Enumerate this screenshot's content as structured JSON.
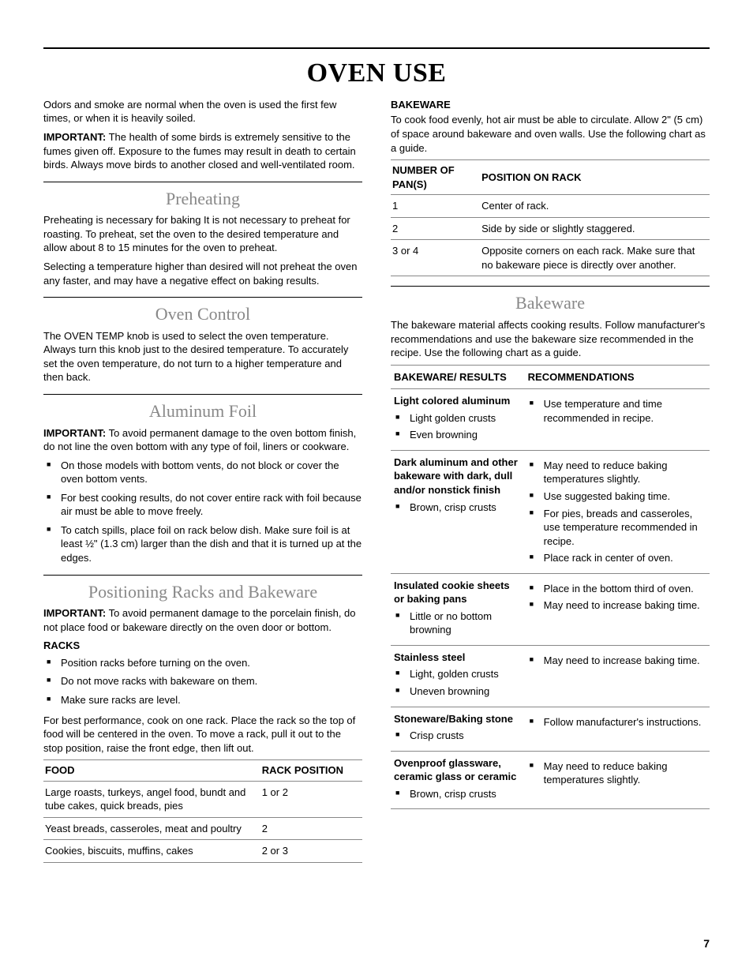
{
  "title": "OVEN USE",
  "pageNumber": "7",
  "intro": {
    "p1": "Odors and smoke are normal when the oven is used the first few times, or when it is heavily soiled.",
    "importantLabel": "IMPORTANT:",
    "importantText": " The health of some birds is extremely sensitive to the fumes given off. Exposure to the fumes may result in death to certain birds. Always move birds to another closed and well-ventilated room."
  },
  "preheating": {
    "heading": "Preheating",
    "p1": "Preheating is necessary for baking It is not necessary to preheat for roasting. To preheat, set the oven to the desired temperature and allow about 8 to 15 minutes for the oven to preheat.",
    "p2": "Selecting a temperature higher than desired will not preheat the oven any faster, and may have a negative effect on baking results."
  },
  "ovenControl": {
    "heading": "Oven Control",
    "p1": "The OVEN TEMP knob is used to select the oven temperature. Always turn this knob just to the desired temperature. To accurately set the oven temperature, do not turn to a higher temperature and then back."
  },
  "aluminumFoil": {
    "heading": "Aluminum Foil",
    "importantLabel": "IMPORTANT:",
    "importantText": " To avoid permanent damage to the oven bottom finish, do not line the oven bottom with any type of foil, liners or cookware.",
    "b1": "On those models with bottom vents, do not block or cover the oven bottom vents.",
    "b2": "For best cooking results, do not cover entire rack with foil because air must be able to move freely.",
    "b3": "To catch spills, place foil on rack below dish. Make sure foil is at least ½\" (1.3 cm) larger than the dish and that it is turned up at the edges."
  },
  "positioning": {
    "heading": "Positioning Racks and Bakeware",
    "importantLabel": "IMPORTANT:",
    "importantText": " To avoid permanent damage to the porcelain finish, do not place food or bakeware directly on the oven door or bottom.",
    "racksLabel": "RACKS",
    "rb1": "Position racks before turning on the oven.",
    "rb2": "Do not move racks with bakeware on them.",
    "rb3": "Make sure racks are level.",
    "racksP": "For best performance, cook on one rack. Place the rack so the top of food will be centered in the oven. To move a rack, pull it out to the stop position, raise the front edge, then lift out.",
    "table": {
      "h1": "FOOD",
      "h2": "RACK POSITION",
      "r1c1": "Large roasts, turkeys, angel food, bundt and tube cakes, quick breads, pies",
      "r1c2": "1 or 2",
      "r2c1": "Yeast breads, casseroles, meat and poultry",
      "r2c2": "2",
      "r3c1": "Cookies, biscuits, muffins, cakes",
      "r3c2": "2 or 3"
    }
  },
  "bakewareTop": {
    "label": "BAKEWARE",
    "p1": "To cook food evenly, hot air must be able to circulate. Allow 2\" (5 cm) of space around bakeware and oven walls. Use the following chart as a guide.",
    "table": {
      "h1": "NUMBER OF PAN(S)",
      "h2": "POSITION ON RACK",
      "r1c1": "1",
      "r1c2": "Center of rack.",
      "r2c1": "2",
      "r2c2": "Side by side or slightly staggered.",
      "r3c1": "3 or 4",
      "r3c2": "Opposite corners on each rack. Make sure that no bakeware piece is directly over another."
    }
  },
  "bakeware": {
    "heading": "Bakeware",
    "p1": "The bakeware material affects cooking results. Follow manufacturer's recommendations and use the bakeware size recommended in the recipe. Use the following chart as a guide.",
    "table": {
      "h1": "BAKEWARE/ RESULTS",
      "h2": "RECOMMENDATIONS",
      "rows": {
        "r1": {
          "mat": "Light colored aluminum",
          "res1": "Light golden crusts",
          "res2": "Even browning",
          "rec1": "Use temperature and time recommended in recipe."
        },
        "r2": {
          "mat": "Dark aluminum and other bakeware with dark, dull and/or nonstick finish",
          "res1": "Brown, crisp crusts",
          "rec1": "May need to reduce baking temperatures slightly.",
          "rec2": "Use suggested baking time.",
          "rec3": "For pies, breads and casseroles, use temperature recommended in recipe.",
          "rec4": "Place rack in center of oven."
        },
        "r3": {
          "mat": "Insulated cookie sheets or baking pans",
          "res1": "Little or no bottom browning",
          "rec1": "Place in the bottom third of oven.",
          "rec2": "May need to increase baking time."
        },
        "r4": {
          "mat": "Stainless steel",
          "res1": "Light, golden crusts",
          "res2": "Uneven browning",
          "rec1": "May need to increase baking time."
        },
        "r5": {
          "mat": "Stoneware/Baking stone",
          "res1": "Crisp crusts",
          "rec1": "Follow manufacturer's instructions."
        },
        "r6": {
          "mat": "Ovenproof glassware, ceramic glass or ceramic",
          "res1": "Brown, crisp crusts",
          "rec1": "May need to reduce baking temperatures slightly."
        }
      }
    }
  }
}
